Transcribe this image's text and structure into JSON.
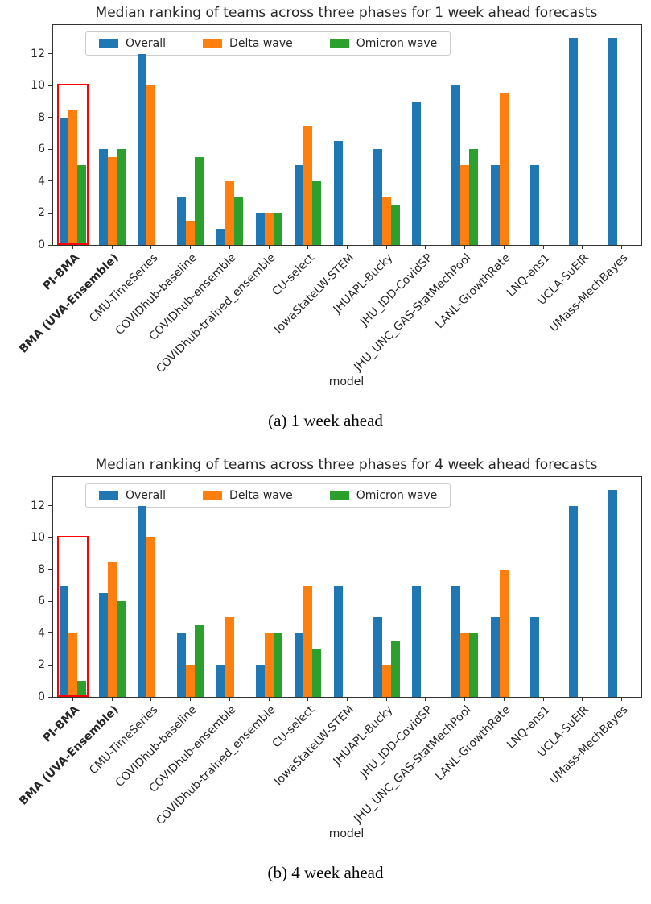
{
  "figure": {
    "background": "#ffffff"
  },
  "colors": {
    "overall": "#1f77b4",
    "delta_wave": "#ff7f0e",
    "omicron_wave": "#2ca02c",
    "highlight": "#ff0000"
  },
  "chart_data": [
    {
      "type": "bar",
      "title": "Median ranking of teams across three phases for 1 week ahead forecasts",
      "caption": "(a) 1 week ahead",
      "xlabel": "model",
      "ylabel": "",
      "ylim": [
        0,
        13.8
      ],
      "yticks": [
        0,
        2,
        4,
        6,
        8,
        10,
        12
      ],
      "grid": false,
      "legend": {
        "position": "upper-left",
        "entries": [
          "Overall",
          "Delta wave",
          "Omicron wave"
        ]
      },
      "categories": [
        "PI-BMA",
        "BMA (UVA-Ensemble)",
        "CMU-TimeSeries",
        "COVIDhub-baseline",
        "COVIDhub-ensemble",
        "COVIDhub-trained_ensemble",
        "CU-select",
        "IowaStateLW-STEM",
        "JHUAPL-Bucky",
        "JHU_IDD-CovidSP",
        "JHU_UNC_GAS-StatMechPool",
        "LANL-GrowthRate",
        "LNQ-ens1",
        "UCLA-SuEIR",
        "UMass-MechBayes"
      ],
      "bold_categories": [
        "PI-BMA",
        "BMA (UVA-Ensemble)"
      ],
      "series": [
        {
          "name": "Overall",
          "color": "#1f77b4",
          "values": [
            8,
            6,
            12,
            3,
            1,
            2,
            5,
            6.5,
            6,
            9,
            10,
            5,
            5,
            13,
            13
          ]
        },
        {
          "name": "Delta wave",
          "color": "#ff7f0e",
          "values": [
            8.5,
            5.5,
            10,
            1.5,
            4,
            2,
            7.5,
            null,
            3,
            null,
            5,
            9.5,
            null,
            null,
            null
          ]
        },
        {
          "name": "Omicron wave",
          "color": "#2ca02c",
          "values": [
            5,
            6,
            null,
            5.5,
            3,
            2,
            4,
            null,
            2.5,
            null,
            6,
            null,
            null,
            null,
            null
          ]
        }
      ],
      "highlight_box": {
        "category_index": 0,
        "category": "PI-BMA",
        "y_top": 10.1,
        "color": "#ff0000"
      }
    },
    {
      "type": "bar",
      "title": "Median ranking of teams across three phases for 4 week ahead forecasts",
      "caption": "(b) 4 week ahead",
      "xlabel": "model",
      "ylabel": "",
      "ylim": [
        0,
        13.8
      ],
      "yticks": [
        0,
        2,
        4,
        6,
        8,
        10,
        12
      ],
      "grid": false,
      "legend": {
        "position": "upper-left",
        "entries": [
          "Overall",
          "Delta wave",
          "Omicron wave"
        ]
      },
      "categories": [
        "PI-BMA",
        "BMA (UVA-Ensemble)",
        "CMU-TimeSeries",
        "COVIDhub-baseline",
        "COVIDhub-ensemble",
        "COVIDhub-trained_ensemble",
        "CU-select",
        "IowaStateLW-STEM",
        "JHUAPL-Bucky",
        "JHU_IDD-CovidSP",
        "JHU_UNC_GAS-StatMechPool",
        "LANL-GrowthRate",
        "LNQ-ens1",
        "UCLA-SuEIR",
        "UMass-MechBayes"
      ],
      "bold_categories": [
        "PI-BMA",
        "BMA (UVA-Ensemble)"
      ],
      "series": [
        {
          "name": "Overall",
          "color": "#1f77b4",
          "values": [
            7,
            6.5,
            12,
            4,
            2,
            2,
            4,
            7,
            5,
            7,
            7,
            5,
            5,
            12,
            13
          ]
        },
        {
          "name": "Delta wave",
          "color": "#ff7f0e",
          "values": [
            4,
            8.5,
            10,
            2,
            5,
            4,
            7,
            null,
            2,
            null,
            4,
            8,
            null,
            null,
            null
          ]
        },
        {
          "name": "Omicron wave",
          "color": "#2ca02c",
          "values": [
            1,
            6,
            null,
            4.5,
            null,
            4,
            3,
            null,
            3.5,
            null,
            4,
            null,
            null,
            null,
            null
          ]
        }
      ],
      "highlight_box": {
        "category_index": 0,
        "category": "PI-BMA",
        "y_top": 10.1,
        "color": "#ff0000"
      }
    }
  ]
}
